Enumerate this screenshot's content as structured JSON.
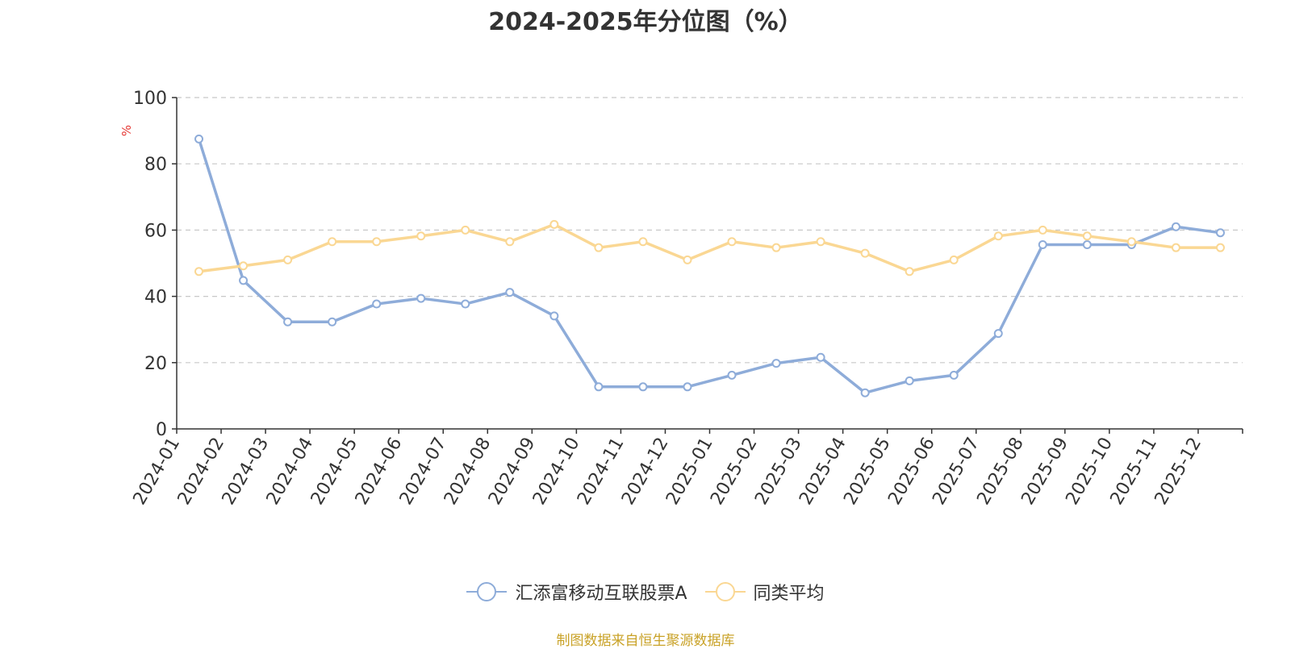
{
  "title": "2024-2025年分位图（%）",
  "source_note": "制图数据来自恒生聚源数据库",
  "colors": {
    "series1": "#8eacd9",
    "series2": "#fad793",
    "axis": "#333333",
    "grid": "#c8c8c8",
    "unit": "#e53935",
    "source": "#c9a227"
  },
  "chart_data": {
    "type": "line",
    "title": "2024-2025年分位图（%）",
    "ylabel": "%",
    "ylim": [
      0,
      100
    ],
    "yticks": [
      0,
      20,
      40,
      60,
      80,
      100
    ],
    "grid": true,
    "legend_position": "bottom",
    "categories": [
      "2024-01",
      "2024-02",
      "2024-03",
      "2024-04",
      "2024-05",
      "2024-06",
      "2024-07",
      "2024-08",
      "2024-09",
      "2024-10",
      "2024-11",
      "2024-12",
      "2025-01",
      "2025-02",
      "2025-03",
      "2025-04",
      "2025-05",
      "2025-06",
      "2025-07",
      "2025-08",
      "2025-09",
      "2025-10",
      "2025-11",
      "2025-12"
    ],
    "series": [
      {
        "name": "汇添富移动互联股票A",
        "color": "#8eacd9",
        "values": [
          87.5,
          44.8,
          32.3,
          32.3,
          37.7,
          39.4,
          37.7,
          41.2,
          34.1,
          12.7,
          12.7,
          12.7,
          16.2,
          19.8,
          21.6,
          10.9,
          14.5,
          16.2,
          28.8,
          55.6,
          55.6,
          55.6,
          61.0,
          59.2
        ]
      },
      {
        "name": "同类平均",
        "color": "#fad793",
        "values": [
          47.5,
          49.2,
          51.0,
          56.5,
          56.5,
          58.2,
          60.0,
          56.5,
          61.7,
          54.7,
          56.5,
          51.0,
          56.5,
          54.7,
          56.5,
          53.0,
          47.5,
          51.0,
          58.2,
          60.0,
          58.2,
          56.5,
          54.7,
          54.7
        ]
      }
    ]
  }
}
